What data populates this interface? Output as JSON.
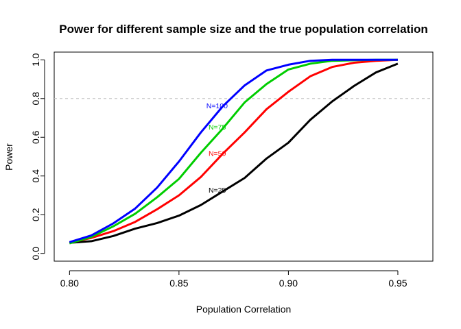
{
  "chart_data": {
    "type": "line",
    "title": "Power for different sample size and the true population correlation",
    "xlabel": "Population Correlation",
    "ylabel": "Power",
    "xlim": [
      0.793,
      0.966
    ],
    "ylim": [
      -0.04,
      1.04
    ],
    "x_ticks": [
      "0.80",
      "0.85",
      "0.90",
      "0.95"
    ],
    "x_tick_values": [
      0.8,
      0.85,
      0.9,
      0.95
    ],
    "y_ticks": [
      "0.0",
      "0.2",
      "0.4",
      "0.6",
      "0.8",
      "1.0"
    ],
    "y_tick_values": [
      0.0,
      0.2,
      0.4,
      0.6,
      0.8,
      1.0
    ],
    "reference_line": {
      "y": 0.8,
      "style": "dashed",
      "color": "#bebebe"
    },
    "grid": false,
    "x": [
      0.8,
      0.81,
      0.82,
      0.83,
      0.84,
      0.85,
      0.86,
      0.87,
      0.88,
      0.89,
      0.9,
      0.91,
      0.92,
      0.93,
      0.94,
      0.95
    ],
    "series": [
      {
        "name": "N=25",
        "color": "#000000",
        "label_at": [
          0.8635,
          0.325
        ],
        "values": [
          0.055,
          0.063,
          0.09,
          0.128,
          0.157,
          0.195,
          0.25,
          0.32,
          0.39,
          0.49,
          0.572,
          0.69,
          0.785,
          0.865,
          0.935,
          0.98
        ]
      },
      {
        "name": "N=50",
        "color": "#ff0000",
        "label_at": [
          0.8635,
          0.515
        ],
        "values": [
          0.055,
          0.08,
          0.115,
          0.163,
          0.228,
          0.3,
          0.395,
          0.515,
          0.625,
          0.745,
          0.835,
          0.915,
          0.963,
          0.985,
          0.995,
          1.0
        ]
      },
      {
        "name": "N=75",
        "color": "#00cd00",
        "label_at": [
          0.8635,
          0.65
        ],
        "values": [
          0.052,
          0.085,
          0.14,
          0.205,
          0.29,
          0.385,
          0.52,
          0.645,
          0.78,
          0.875,
          0.95,
          0.98,
          0.995,
          0.998,
          1.0,
          1.0
        ]
      },
      {
        "name": "N=100",
        "color": "#0000ff",
        "label_at": [
          0.8625,
          0.76
        ],
        "values": [
          0.058,
          0.093,
          0.155,
          0.232,
          0.34,
          0.475,
          0.625,
          0.76,
          0.868,
          0.945,
          0.975,
          0.995,
          1.0,
          1.0,
          1.0,
          1.0
        ]
      }
    ]
  }
}
